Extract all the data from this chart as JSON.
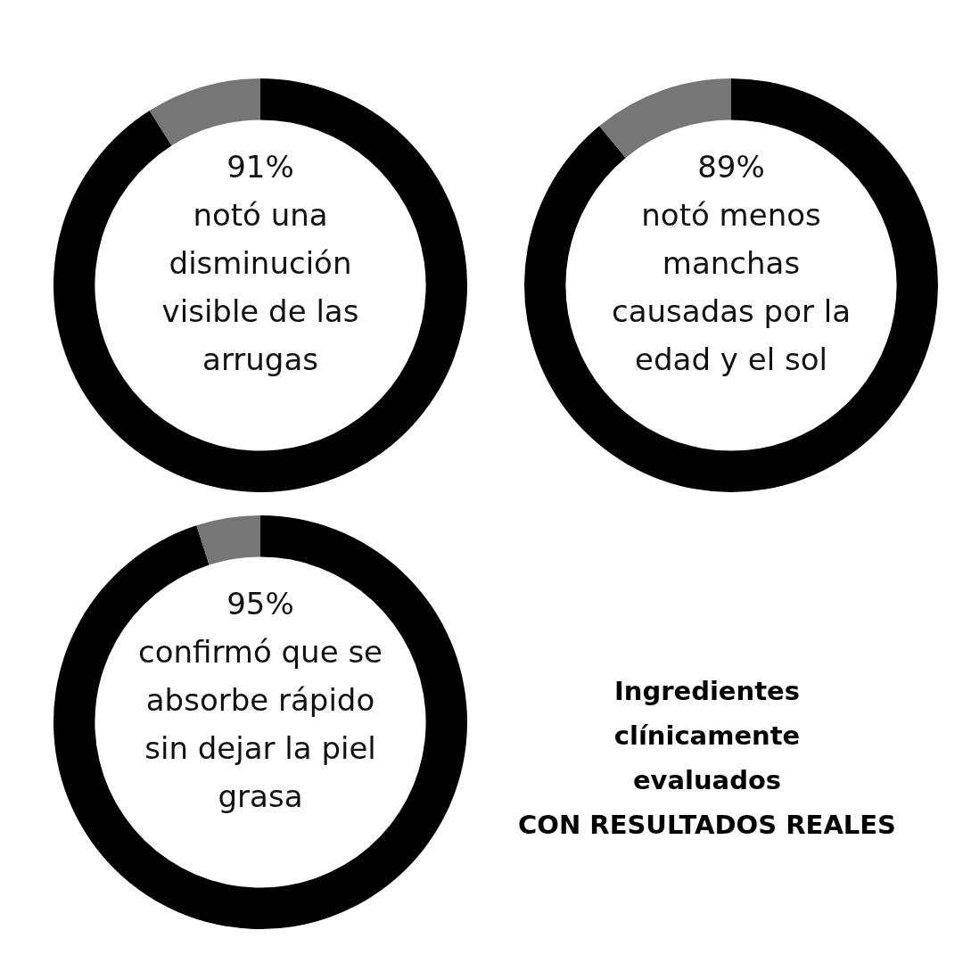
{
  "chart_data": [
    {
      "type": "donut",
      "categories": [
        null,
        null
      ],
      "values": [
        91,
        9
      ],
      "colors": [
        "#000000",
        "#767676"
      ],
      "value_labels": [
        "91%",
        null
      ],
      "annotations": [
        "notó una disminución visible de las arrugas"
      ]
    },
    {
      "type": "donut",
      "categories": [
        null,
        null
      ],
      "values": [
        89,
        11
      ],
      "colors": [
        "#000000",
        "#767676"
      ],
      "value_labels": [
        "89%",
        null
      ],
      "annotations": [
        "notó menos manchas causadas por la edad y el sol"
      ]
    },
    {
      "type": "donut",
      "categories": [
        null,
        null
      ],
      "values": [
        95,
        5
      ],
      "colors": [
        "#000000",
        "#767676"
      ],
      "value_labels": [
        "95%",
        null
      ],
      "annotations": [
        "confirmó que se absorbe rápido sin dejar la piel grasa"
      ]
    },
    {
      "type": "other",
      "title": "Ingredientes clínicamente evaluados",
      "subtitle": "CON RESULTADOS REALES"
    }
  ]
}
